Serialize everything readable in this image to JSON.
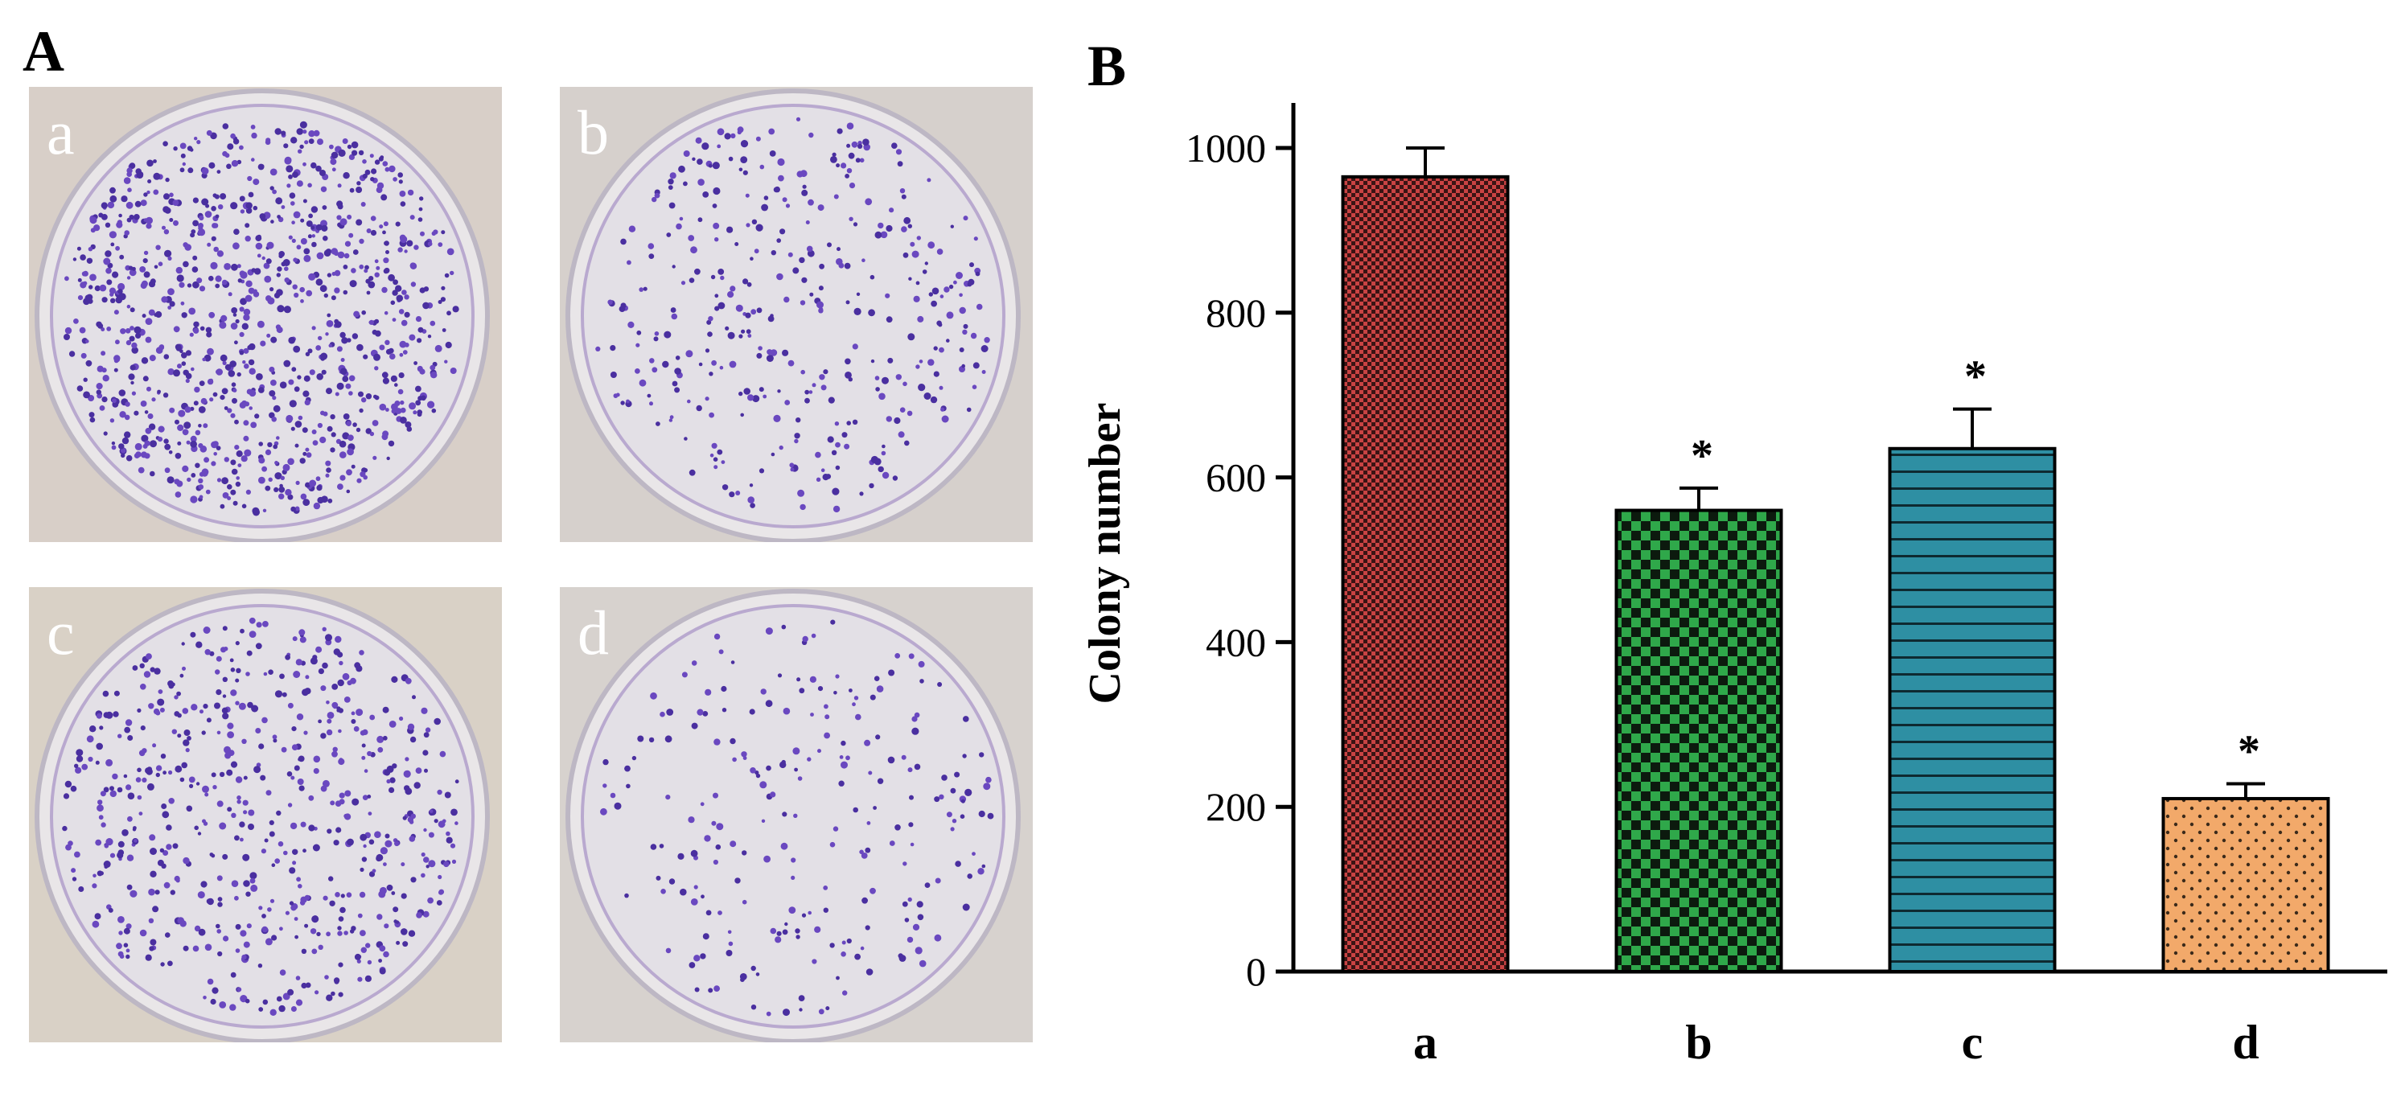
{
  "panels": {
    "left": "A",
    "right": "B"
  },
  "photos": [
    {
      "label": "a",
      "density": 1000,
      "tint": "#d8cfc8"
    },
    {
      "label": "b",
      "density": 380,
      "tint": "#d6d0cc"
    },
    {
      "label": "c",
      "density": 620,
      "tint": "#d9d1c6"
    },
    {
      "label": "d",
      "density": 230,
      "tint": "#d7d2ce"
    }
  ],
  "chart_data": {
    "type": "bar",
    "categories": [
      "a",
      "b",
      "c",
      "d"
    ],
    "values": [
      965,
      560,
      635,
      210
    ],
    "errors": [
      35,
      27,
      48,
      18
    ],
    "significance": [
      "",
      "*",
      "*",
      "*"
    ],
    "colors": [
      "#c94343",
      "#2fa84a",
      "#2e8fa3",
      "#f2a96a"
    ],
    "patterns": [
      "fine-check",
      "checkerboard",
      "horizontal-lines",
      "dots"
    ],
    "ylabel": "Colony number",
    "xlabel": "",
    "title": "",
    "ylim": [
      0,
      1000
    ],
    "yticks": [
      0,
      200,
      400,
      600,
      800,
      1000
    ],
    "grid": false,
    "legend": "none"
  }
}
